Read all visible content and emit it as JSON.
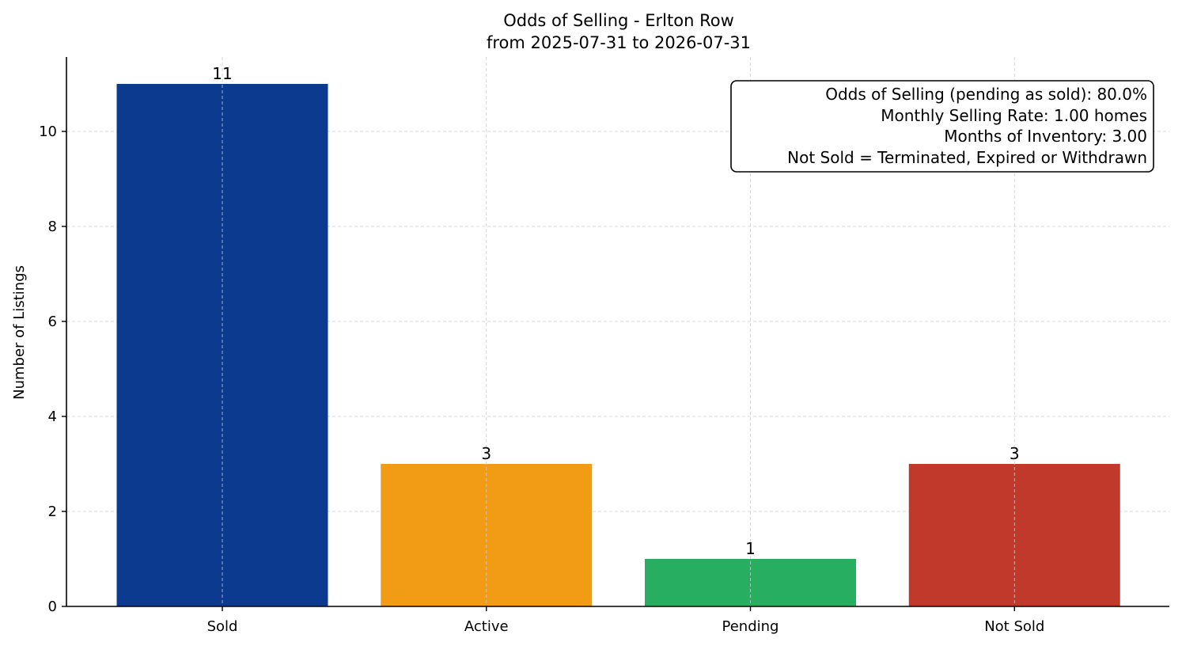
{
  "chart_data": {
    "type": "bar",
    "title": "Odds of Selling - Erlton Row",
    "subtitle": "from 2025-07-31 to 2026-07-31",
    "xlabel": "",
    "ylabel": "Number of Listings",
    "categories": [
      "Sold",
      "Active",
      "Pending",
      "Not Sold"
    ],
    "values": [
      11,
      3,
      1,
      3
    ],
    "data_labels": [
      "11",
      "3",
      "1",
      "3"
    ],
    "colors": [
      "#0b3a8e",
      "#f29c16",
      "#27ae60",
      "#c0392b"
    ],
    "ylim": [
      0,
      11.57
    ],
    "yticks": [
      0,
      2,
      4,
      6,
      8,
      10
    ],
    "grid": true,
    "annotation": {
      "placement": "top-right",
      "lines": [
        "Odds of Selling (pending as sold): 80.0%",
        "Monthly Selling Rate: 1.00 homes",
        "Months of Inventory: 3.00",
        "Not Sold = Terminated, Expired or Withdrawn"
      ]
    }
  }
}
